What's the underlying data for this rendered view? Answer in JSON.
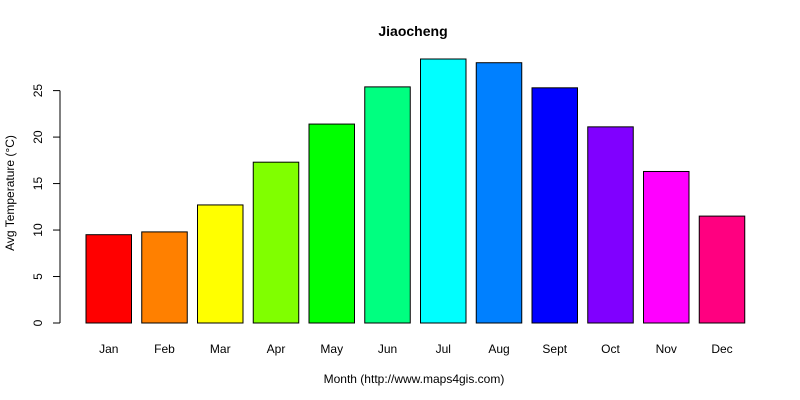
{
  "chart_data": {
    "type": "bar",
    "title": "Jiaocheng",
    "xlabel": "Month (http://www.maps4gis.com)",
    "ylabel": "Avg Temperature (°C)",
    "categories": [
      "Jan",
      "Feb",
      "Mar",
      "Apr",
      "May",
      "Jun",
      "Jul",
      "Aug",
      "Sept",
      "Oct",
      "Nov",
      "Dec"
    ],
    "values": [
      9.5,
      9.8,
      12.7,
      17.3,
      21.4,
      25.4,
      28.4,
      28.0,
      25.3,
      21.1,
      16.3,
      11.5
    ],
    "colors": [
      "#FF0000",
      "#FF8000",
      "#FFFF00",
      "#80FF00",
      "#00FF00",
      "#00FF80",
      "#00FFFF",
      "#0080FF",
      "#0000FF",
      "#8000FF",
      "#FF00FF",
      "#FF0080"
    ],
    "yticks": [
      0,
      5,
      10,
      15,
      20,
      25
    ],
    "ylim": [
      0,
      28.4
    ],
    "grid": false,
    "legend": "none"
  }
}
